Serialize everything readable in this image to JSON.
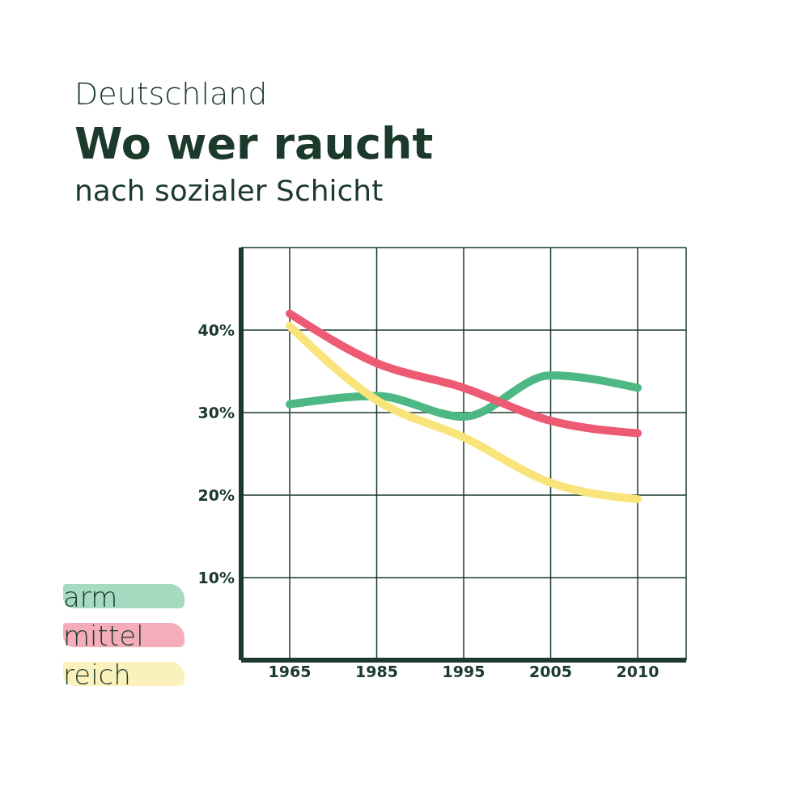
{
  "chart_data": {
    "type": "line",
    "title": "Wo wer raucht",
    "subtitle": "nach sozialer Schicht",
    "annotations": [
      "Deutschland"
    ],
    "categories": [
      "1965",
      "1985",
      "1995",
      "2005",
      "2010"
    ],
    "series": [
      {
        "name": "arm",
        "color": "#4db883",
        "values": [
          31,
          32,
          29.5,
          34.5,
          33
        ]
      },
      {
        "name": "mittel",
        "color": "#ec5b73",
        "values": [
          42,
          36,
          33,
          29,
          27.5
        ]
      },
      {
        "name": "reich",
        "color": "#f8e47a",
        "values": [
          40.5,
          31.5,
          27,
          21.5,
          19.5
        ]
      }
    ],
    "ylim": [
      0,
      50
    ],
    "yticks": [
      {
        "value": 10,
        "label": "10%"
      },
      {
        "value": 20,
        "label": "20%"
      },
      {
        "value": 30,
        "label": "30%"
      },
      {
        "value": 40,
        "label": "40%"
      }
    ],
    "grid": true,
    "legend": "bottom left",
    "marker": "none",
    "line_style": "solid"
  }
}
